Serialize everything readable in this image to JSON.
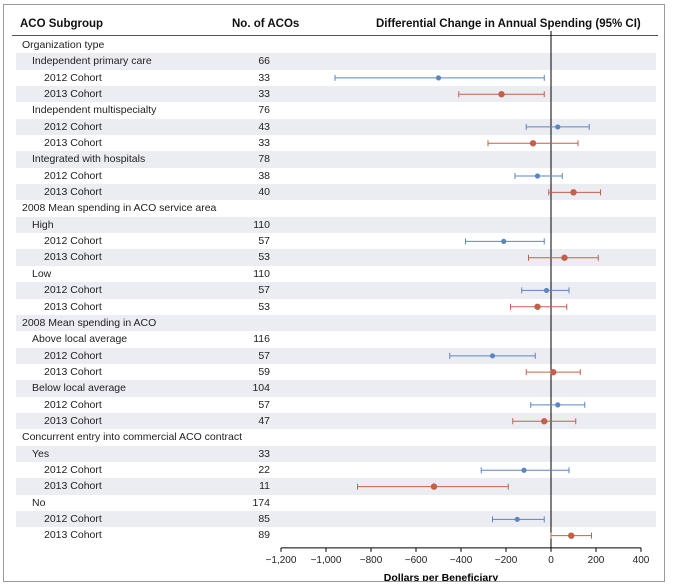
{
  "headers": {
    "subgroup": "ACO Subgroup",
    "n": "No. of ACOs",
    "diff": "Differential Change in Annual Spending (95% CI)"
  },
  "chart_data": {
    "type": "forest",
    "title": "Differential Change in Annual Spending (95% CI)",
    "xlabel": "Dollars per Beneficiary",
    "xlim": [
      -1200,
      400
    ],
    "xticks": [
      -1200,
      -1000,
      -800,
      -600,
      -400,
      -200,
      0,
      200,
      400
    ],
    "xtick_labels": [
      "−1,200",
      "−1,000",
      "−800",
      "−600",
      "−400",
      "−200",
      "0",
      "200",
      "400"
    ],
    "reference_line": 0,
    "series_colors": {
      "2012": "#5b86bf",
      "2013": "#c4604a"
    },
    "rows": [
      {
        "label": "Organization type",
        "level": 0,
        "n": ""
      },
      {
        "label": "Independent primary care",
        "level": 1,
        "n": "66"
      },
      {
        "label": "2012 Cohort",
        "level": 2,
        "n": "33",
        "cohort": "2012",
        "est": -500,
        "lo": -960,
        "hi": -30
      },
      {
        "label": "2013 Cohort",
        "level": 2,
        "n": "33",
        "cohort": "2013",
        "est": -220,
        "lo": -410,
        "hi": -30
      },
      {
        "label": "Independent multispecialty",
        "level": 1,
        "n": "76"
      },
      {
        "label": "2012 Cohort",
        "level": 2,
        "n": "43",
        "cohort": "2012",
        "est": 30,
        "lo": -110,
        "hi": 170
      },
      {
        "label": "2013 Cohort",
        "level": 2,
        "n": "33",
        "cohort": "2013",
        "est": -80,
        "lo": -280,
        "hi": 120
      },
      {
        "label": "Integrated with hospitals",
        "level": 1,
        "n": "78"
      },
      {
        "label": "2012 Cohort",
        "level": 2,
        "n": "38",
        "cohort": "2012",
        "est": -60,
        "lo": -160,
        "hi": 50
      },
      {
        "label": "2013 Cohort",
        "level": 2,
        "n": "40",
        "cohort": "2013",
        "est": 100,
        "lo": -10,
        "hi": 220
      },
      {
        "label": "2008 Mean spending in ACO service area",
        "level": 0,
        "n": ""
      },
      {
        "label": "High",
        "level": 1,
        "n": "110"
      },
      {
        "label": "2012 Cohort",
        "level": 2,
        "n": "57",
        "cohort": "2012",
        "est": -210,
        "lo": -380,
        "hi": -30
      },
      {
        "label": "2013 Cohort",
        "level": 2,
        "n": "53",
        "cohort": "2013",
        "est": 60,
        "lo": -100,
        "hi": 210
      },
      {
        "label": "Low",
        "level": 1,
        "n": "110"
      },
      {
        "label": "2012 Cohort",
        "level": 2,
        "n": "57",
        "cohort": "2012",
        "est": -20,
        "lo": -130,
        "hi": 80
      },
      {
        "label": "2013 Cohort",
        "level": 2,
        "n": "53",
        "cohort": "2013",
        "est": -60,
        "lo": -180,
        "hi": 70
      },
      {
        "label": "2008 Mean spending in ACO",
        "level": 0,
        "n": ""
      },
      {
        "label": "Above local average",
        "level": 1,
        "n": "116"
      },
      {
        "label": "2012 Cohort",
        "level": 2,
        "n": "57",
        "cohort": "2012",
        "est": -260,
        "lo": -450,
        "hi": -70
      },
      {
        "label": "2013 Cohort",
        "level": 2,
        "n": "59",
        "cohort": "2013",
        "est": 10,
        "lo": -110,
        "hi": 130
      },
      {
        "label": "Below local average",
        "level": 1,
        "n": "104"
      },
      {
        "label": "2012 Cohort",
        "level": 2,
        "n": "57",
        "cohort": "2012",
        "est": 30,
        "lo": -90,
        "hi": 150
      },
      {
        "label": "2013 Cohort",
        "level": 2,
        "n": "47",
        "cohort": "2013",
        "est": -30,
        "lo": -170,
        "hi": 110
      },
      {
        "label": "Concurrent entry into commercial ACO contract",
        "level": 0,
        "n": ""
      },
      {
        "label": "Yes",
        "level": 1,
        "n": "33"
      },
      {
        "label": "2012 Cohort",
        "level": 2,
        "n": "22",
        "cohort": "2012",
        "est": -120,
        "lo": -310,
        "hi": 80
      },
      {
        "label": "2013 Cohort",
        "level": 2,
        "n": "11",
        "cohort": "2013",
        "est": -520,
        "lo": -860,
        "hi": -190
      },
      {
        "label": "No",
        "level": 1,
        "n": "174"
      },
      {
        "label": "2012 Cohort",
        "level": 2,
        "n": "85",
        "cohort": "2012",
        "est": -150,
        "lo": -260,
        "hi": -30
      },
      {
        "label": "2013 Cohort",
        "level": 2,
        "n": "89",
        "cohort": "2013",
        "est": 90,
        "lo": 0,
        "hi": 180
      }
    ]
  }
}
